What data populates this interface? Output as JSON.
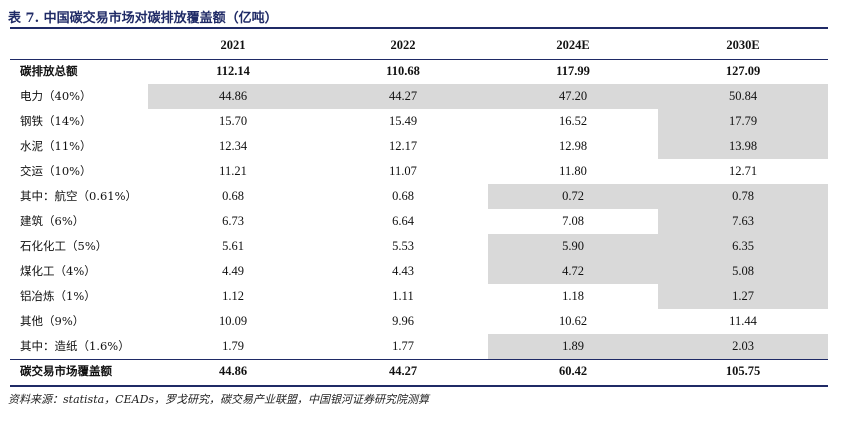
{
  "title": "表 7. 中国碳交易市场对碳排放覆盖额（亿吨）",
  "columns": [
    "",
    "2021",
    "2022",
    "2024E",
    "2030E"
  ],
  "rows": [
    {
      "label": "碳排放总额",
      "values": [
        "112.14",
        "110.68",
        "117.99",
        "127.09"
      ],
      "highlight": [
        false,
        false,
        false,
        false
      ],
      "bold": true
    },
    {
      "label": "电力（40%）",
      "values": [
        "44.86",
        "44.27",
        "47.20",
        "50.84"
      ],
      "highlight": [
        true,
        true,
        true,
        true
      ],
      "bold": false
    },
    {
      "label": "钢铁（14%）",
      "values": [
        "15.70",
        "15.49",
        "16.52",
        "17.79"
      ],
      "highlight": [
        false,
        false,
        false,
        true
      ],
      "bold": false
    },
    {
      "label": "水泥（11%）",
      "values": [
        "12.34",
        "12.17",
        "12.98",
        "13.98"
      ],
      "highlight": [
        false,
        false,
        false,
        true
      ],
      "bold": false
    },
    {
      "label": "交运（10%）",
      "values": [
        "11.21",
        "11.07",
        "11.80",
        "12.71"
      ],
      "highlight": [
        false,
        false,
        false,
        false
      ],
      "bold": false
    },
    {
      "label": "其中：航空（0.61%）",
      "values": [
        "0.68",
        "0.68",
        "0.72",
        "0.78"
      ],
      "highlight": [
        false,
        false,
        true,
        true
      ],
      "bold": false
    },
    {
      "label": "建筑（6%）",
      "values": [
        "6.73",
        "6.64",
        "7.08",
        "7.63"
      ],
      "highlight": [
        false,
        false,
        false,
        true
      ],
      "bold": false
    },
    {
      "label": "石化化工（5%）",
      "values": [
        "5.61",
        "5.53",
        "5.90",
        "6.35"
      ],
      "highlight": [
        false,
        false,
        true,
        true
      ],
      "bold": false
    },
    {
      "label": "煤化工（4%）",
      "values": [
        "4.49",
        "4.43",
        "4.72",
        "5.08"
      ],
      "highlight": [
        false,
        false,
        true,
        true
      ],
      "bold": false
    },
    {
      "label": "铝冶炼（1%）",
      "values": [
        "1.12",
        "1.11",
        "1.18",
        "1.27"
      ],
      "highlight": [
        false,
        false,
        false,
        true
      ],
      "bold": false
    },
    {
      "label": "其他（9%）",
      "values": [
        "10.09",
        "9.96",
        "10.62",
        "11.44"
      ],
      "highlight": [
        false,
        false,
        false,
        false
      ],
      "bold": false
    },
    {
      "label": "其中：造纸（1.6%）",
      "values": [
        "1.79",
        "1.77",
        "1.89",
        "2.03"
      ],
      "highlight": [
        false,
        false,
        true,
        true
      ],
      "bold": false
    },
    {
      "label": "碳交易市场覆盖额",
      "values": [
        "44.86",
        "44.27",
        "60.42",
        "105.75"
      ],
      "highlight": [
        false,
        false,
        false,
        false
      ],
      "bold": true
    }
  ],
  "source": "资料来源：statista，CEADs，罗戈研究，碳交易产业联盟，中国银河证券研究院测算",
  "colors": {
    "accent": "#1f2a66",
    "highlight": "#d9d9d9"
  }
}
